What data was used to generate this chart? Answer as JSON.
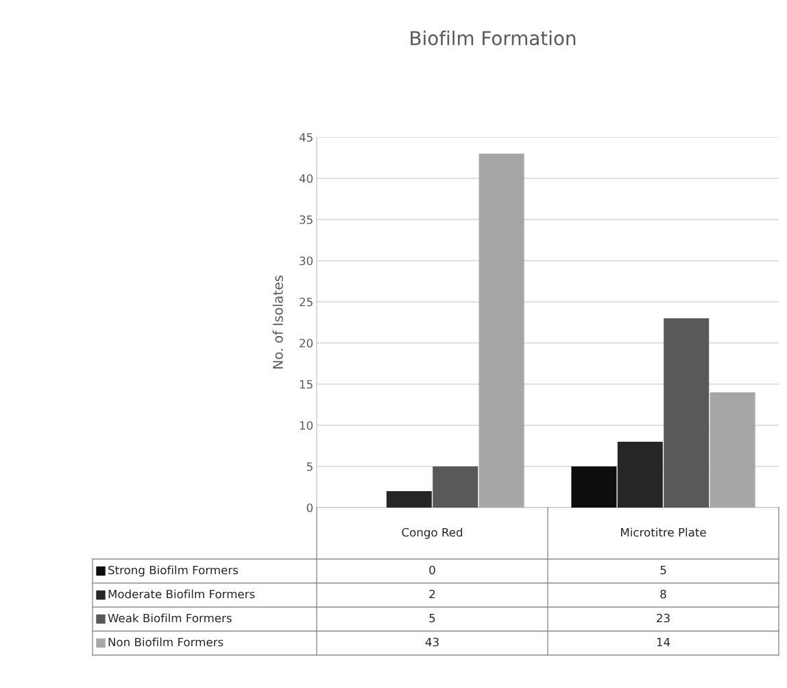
{
  "chart_data": {
    "type": "bar",
    "title": "Biofilm Formation",
    "ylabel": "No. of Isolates",
    "categories": [
      "Congo Red",
      "Microtitre Plate"
    ],
    "series": [
      {
        "name": "Strong Biofilm Formers",
        "color": "#0d0d0d",
        "values": [
          0,
          5
        ]
      },
      {
        "name": "Moderate Biofilm Formers",
        "color": "#262626",
        "values": [
          2,
          8
        ]
      },
      {
        "name": "Weak Biofilm Formers",
        "color": "#595959",
        "values": [
          5,
          23
        ]
      },
      {
        "name": "Non Biofilm Formers",
        "color": "#a6a6a6",
        "values": [
          43,
          14
        ]
      }
    ],
    "ylim": [
      0,
      45
    ],
    "yticks": [
      0,
      5,
      10,
      15,
      20,
      25,
      30,
      35,
      40,
      45
    ],
    "grid": "y",
    "legend": "bottom",
    "data_labels": true
  }
}
